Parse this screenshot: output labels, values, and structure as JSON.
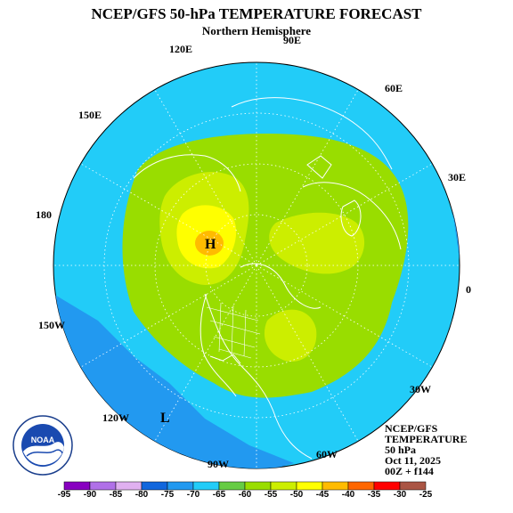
{
  "title": "NCEP/GFS 50-hPa TEMPERATURE FORECAST",
  "subtitle": "Northern Hemisphere",
  "longitude_labels": [
    "90E",
    "120E",
    "60E",
    "150E",
    "30E",
    "180",
    "0",
    "150W",
    "30W",
    "120W",
    "60W",
    "90W"
  ],
  "pressure_markers": {
    "high": "H",
    "low": "L"
  },
  "info_block": [
    "NCEP/GFS",
    "TEMPERATURE",
    "50 hPa",
    "Oct 11, 2025",
    "00Z + f144"
  ],
  "logo": {
    "text": "NOAA",
    "ring_text": "NATIONAL OCEANIC AND ATMOSPHERIC ADMINISTRATION · U.S. DEPARTMENT OF COMMERCE"
  },
  "colorbar": {
    "ticks": [
      "-95",
      "-90",
      "-85",
      "-80",
      "-75",
      "-70",
      "-65",
      "-60",
      "-55",
      "-50",
      "-45",
      "-40",
      "-35",
      "-30",
      "-25"
    ],
    "colors": [
      "#8800c0",
      "#b070e8",
      "#e0b0f0",
      "#1166dd",
      "#2299f0",
      "#22ccf8",
      "#66cc44",
      "#99dd00",
      "#ccee00",
      "#ffff00",
      "#ffbb00",
      "#ff6600",
      "#ff0000",
      "#aa5544"
    ]
  },
  "colors": {
    "ocean_band": "#22ccf8",
    "cold_band": "#2299f0",
    "mid_band": "#99dd00",
    "warm_band": "#ccee00",
    "hot_band": "#ffbb00",
    "coast": "#ffffff"
  }
}
